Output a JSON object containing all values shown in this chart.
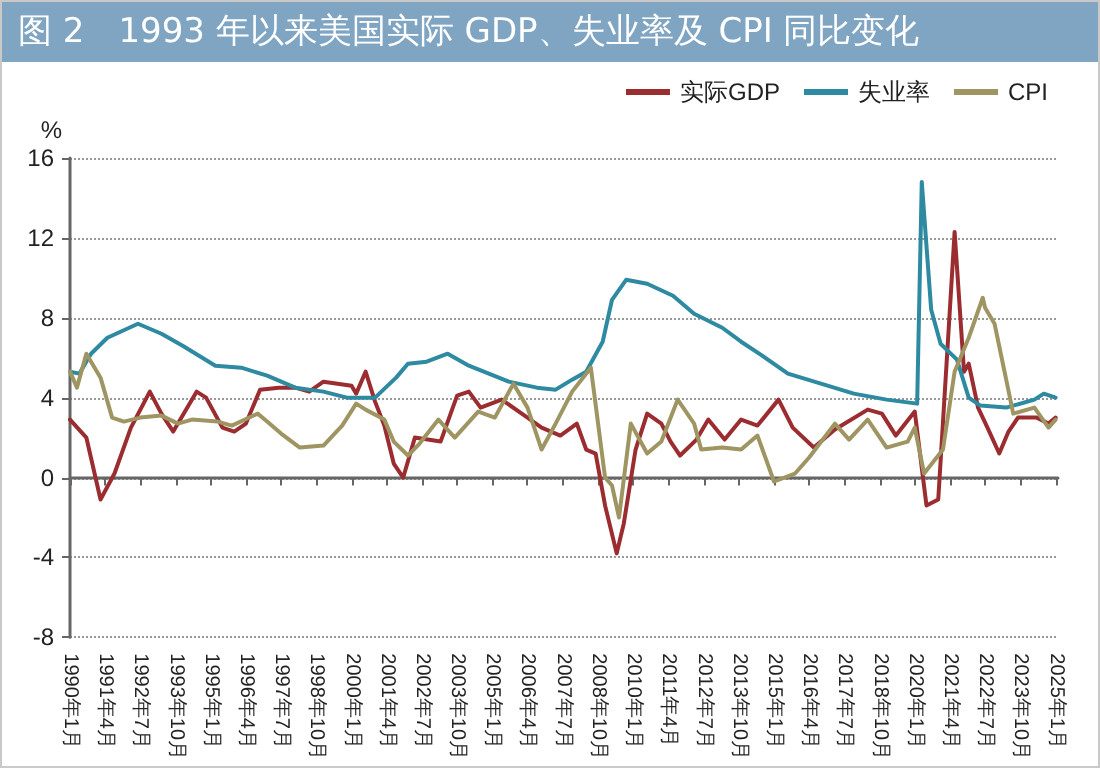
{
  "chart_data": {
    "type": "line",
    "title": "图 2　1993 年以来美国实际 GDP、失业率及 CPI 同比变化",
    "ylabel": "%",
    "legend": "top right",
    "grid": "y",
    "marker": "none",
    "line_style": "solid",
    "xlim": [
      "1990-01",
      "2025-02"
    ],
    "xticks": [
      {
        "value": "1990-01",
        "label": "1990年1月"
      },
      {
        "value": "1991-04",
        "label": "1991年4月"
      },
      {
        "value": "1992-07",
        "label": "1992年7月"
      },
      {
        "value": "1993-10",
        "label": "1993年10月"
      },
      {
        "value": "1995-01",
        "label": "1995年1月"
      },
      {
        "value": "1996-04",
        "label": "1996年4月"
      },
      {
        "value": "1997-07",
        "label": "1997年7月"
      },
      {
        "value": "1998-10",
        "label": "1998年10月"
      },
      {
        "value": "2000-01",
        "label": "2000年1月"
      },
      {
        "value": "2001-04",
        "label": "2001年4月"
      },
      {
        "value": "2002-07",
        "label": "2002年7月"
      },
      {
        "value": "2003-10",
        "label": "2003年10月"
      },
      {
        "value": "2005-01",
        "label": "2005年1月"
      },
      {
        "value": "2006-04",
        "label": "2006年4月"
      },
      {
        "value": "2007-07",
        "label": "2007年7月"
      },
      {
        "value": "2008-10",
        "label": "2008年10月"
      },
      {
        "value": "2010-01",
        "label": "2010年1月"
      },
      {
        "value": "2011-04",
        "label": "2011年4月"
      },
      {
        "value": "2012-07",
        "label": "2012年7月"
      },
      {
        "value": "2013-10",
        "label": "2013年10月"
      },
      {
        "value": "2015-01",
        "label": "2015年1月"
      },
      {
        "value": "2016-04",
        "label": "2016年4月"
      },
      {
        "value": "2017-07",
        "label": "2017年7月"
      },
      {
        "value": "2018-10",
        "label": "2018年10月"
      },
      {
        "value": "2020-01",
        "label": "2020年1月"
      },
      {
        "value": "2021-04",
        "label": "2021年4月"
      },
      {
        "value": "2022-07",
        "label": "2022年7月"
      },
      {
        "value": "2023-10",
        "label": "2023年10月"
      },
      {
        "value": "2025-01",
        "label": "2025年1月"
      }
    ],
    "ylim": [
      -8,
      16
    ],
    "yticks": [
      -8,
      -4,
      0,
      4,
      8,
      12,
      16
    ],
    "series": [
      {
        "name": "实际GDP",
        "color": "#9b2d30",
        "x": [
          "1990-01",
          "1990-08",
          "1991-02",
          "1991-08",
          "1992-03",
          "1992-11",
          "1993-04",
          "1993-09",
          "1994-07",
          "1994-11",
          "1995-06",
          "1995-11",
          "1996-04",
          "1996-10",
          "1997-06",
          "1998-01",
          "1998-07",
          "1999-01",
          "2000-01",
          "2000-03",
          "2000-07",
          "2000-11",
          "2001-03",
          "2001-07",
          "2001-11",
          "2002-04",
          "2003-03",
          "2003-10",
          "2004-03",
          "2004-08",
          "2005-05",
          "2006-04",
          "2006-10",
          "2007-06",
          "2008-01",
          "2008-05",
          "2008-09",
          "2009-01",
          "2009-06",
          "2009-09",
          "2010-02",
          "2010-07",
          "2011-01",
          "2011-05",
          "2011-09",
          "2012-04",
          "2012-09",
          "2013-04",
          "2013-11",
          "2014-06",
          "2015-03",
          "2015-09",
          "2016-06",
          "2017-03",
          "2018-05",
          "2018-11",
          "2019-05",
          "2020-01",
          "2020-06",
          "2020-11",
          "2021-06",
          "2021-10",
          "2021-12",
          "2022-04",
          "2022-08",
          "2023-01",
          "2023-05",
          "2023-09",
          "2024-05",
          "2024-10",
          "2025-01"
        ],
        "values": [
          2.9,
          2.0,
          -1.1,
          0.2,
          2.5,
          4.3,
          3.2,
          2.3,
          4.3,
          4.0,
          2.5,
          2.3,
          2.7,
          4.4,
          4.5,
          4.5,
          4.3,
          4.8,
          4.6,
          4.2,
          5.3,
          3.8,
          2.6,
          0.7,
          0.0,
          2.0,
          1.8,
          4.1,
          4.3,
          3.5,
          3.9,
          3.0,
          2.5,
          2.1,
          2.7,
          1.4,
          1.2,
          -1.4,
          -3.8,
          -2.3,
          1.4,
          3.2,
          2.7,
          1.8,
          1.1,
          1.9,
          2.9,
          1.9,
          2.9,
          2.6,
          3.9,
          2.5,
          1.5,
          2.4,
          3.4,
          3.2,
          2.1,
          3.3,
          -1.4,
          -1.1,
          12.3,
          5.3,
          5.7,
          3.5,
          2.5,
          1.2,
          2.3,
          3.0,
          3.0,
          2.7,
          3.0
        ]
      },
      {
        "name": "失业率",
        "color": "#2e8aa0",
        "x": [
          "1990-01",
          "1990-05",
          "1990-10",
          "1991-05",
          "1992-06",
          "1993-04",
          "1994-01",
          "1995-03",
          "1996-02",
          "1997-01",
          "1998-01",
          "1999-01",
          "1999-11",
          "2000-11",
          "2001-08",
          "2002-01",
          "2002-09",
          "2003-06",
          "2004-03",
          "2005-08",
          "2006-08",
          "2007-04",
          "2007-11",
          "2008-05",
          "2008-12",
          "2009-04",
          "2009-10",
          "2010-07",
          "2011-06",
          "2012-03",
          "2013-03",
          "2013-11",
          "2014-08",
          "2015-07",
          "2016-09",
          "2017-11",
          "2019-01",
          "2020-02",
          "2020-04",
          "2020-08",
          "2020-12",
          "2021-07",
          "2021-12",
          "2022-05",
          "2023-04",
          "2024-04",
          "2024-08",
          "2025-01"
        ],
        "values": [
          5.3,
          5.2,
          6.2,
          7.0,
          7.7,
          7.2,
          6.6,
          5.6,
          5.5,
          5.1,
          4.5,
          4.3,
          4.0,
          4.0,
          5.0,
          5.7,
          5.8,
          6.2,
          5.6,
          4.8,
          4.5,
          4.4,
          4.9,
          5.3,
          6.8,
          8.9,
          9.9,
          9.7,
          9.1,
          8.2,
          7.5,
          6.8,
          6.1,
          5.2,
          4.7,
          4.2,
          3.9,
          3.7,
          14.8,
          8.4,
          6.7,
          5.9,
          4.0,
          3.6,
          3.5,
          3.9,
          4.2,
          4.0
        ]
      },
      {
        "name": "CPI",
        "color": "#9e9562",
        "x": [
          "1990-01",
          "1990-04",
          "1990-08",
          "1991-02",
          "1991-07",
          "1991-12",
          "1992-07",
          "1993-04",
          "1993-11",
          "1994-05",
          "1995-04",
          "1995-10",
          "1996-09",
          "1997-01",
          "1997-07",
          "1998-03",
          "1999-01",
          "1999-09",
          "2000-03",
          "2000-07",
          "2001-03",
          "2001-07",
          "2002-01",
          "2002-06",
          "2003-02",
          "2003-09",
          "2004-07",
          "2005-02",
          "2005-10",
          "2006-04",
          "2006-10",
          "2007-04",
          "2007-11",
          "2008-07",
          "2009-01",
          "2009-04",
          "2009-07",
          "2009-12",
          "2010-07",
          "2011-01",
          "2011-08",
          "2012-03",
          "2012-06",
          "2013-03",
          "2013-11",
          "2014-06",
          "2015-01",
          "2015-10",
          "2016-04",
          "2017-03",
          "2017-09",
          "2018-05",
          "2019-01",
          "2019-10",
          "2020-01",
          "2020-05",
          "2021-01",
          "2021-06",
          "2021-12",
          "2022-06",
          "2022-07",
          "2022-11",
          "2023-04",
          "2023-07",
          "2024-04",
          "2024-10",
          "2025-01"
        ],
        "values": [
          5.3,
          4.5,
          6.2,
          5.0,
          3.0,
          2.8,
          3.0,
          3.1,
          2.7,
          2.9,
          2.8,
          2.6,
          3.2,
          2.8,
          2.2,
          1.5,
          1.6,
          2.6,
          3.7,
          3.4,
          2.9,
          1.8,
          1.1,
          1.7,
          2.9,
          2.0,
          3.3,
          3.0,
          4.7,
          3.5,
          1.4,
          2.7,
          4.3,
          5.5,
          0.0,
          -0.4,
          -2.0,
          2.7,
          1.2,
          1.8,
          3.9,
          2.7,
          1.4,
          1.5,
          1.4,
          2.1,
          -0.2,
          0.2,
          1.0,
          2.7,
          1.9,
          2.9,
          1.5,
          1.8,
          2.5,
          0.2,
          1.4,
          5.3,
          7.0,
          9.0,
          8.5,
          7.7,
          4.9,
          3.2,
          3.5,
          2.5,
          2.9
        ]
      }
    ]
  }
}
